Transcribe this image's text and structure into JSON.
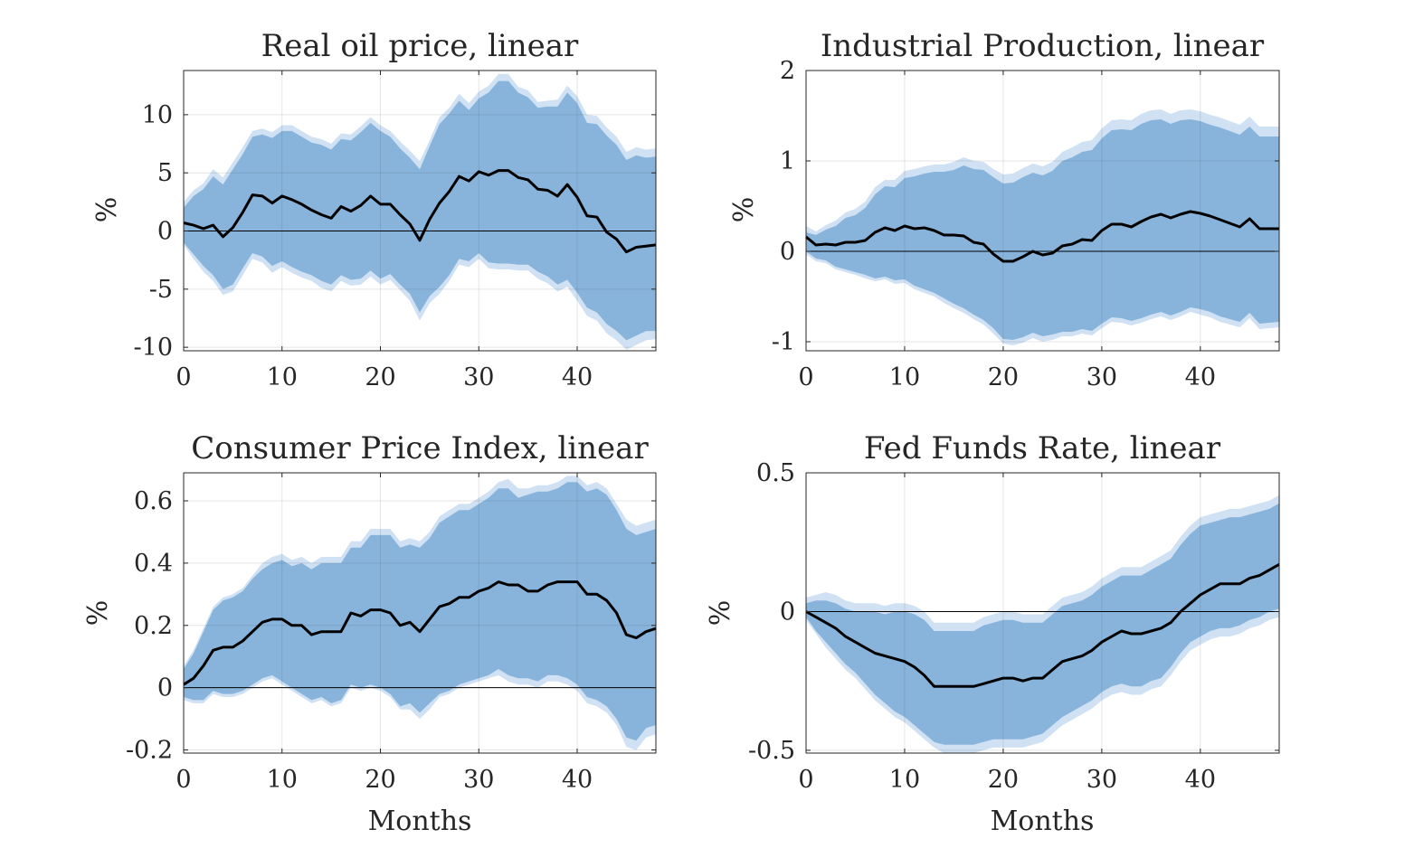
{
  "colors": {
    "outer_band": "#cfe1f3",
    "inner_band": "#88b4dc",
    "line": "#000000",
    "grid": "#dfdfdf",
    "axis": "#262626"
  },
  "chart_data": [
    {
      "type": "area",
      "title": "Real oil price, linear",
      "xlabel": "",
      "ylabel": "%",
      "xlim": [
        0,
        48
      ],
      "ylim": [
        -10.3,
        13.8
      ],
      "xticks": [
        0,
        10,
        20,
        30,
        40
      ],
      "yticks": [
        -10,
        -5,
        0,
        5,
        10
      ],
      "ytick_labels": [
        "-10",
        "-5",
        "0",
        "5",
        "10"
      ],
      "grid": true,
      "zero_line": true,
      "x": [
        0,
        1,
        2,
        3,
        4,
        5,
        6,
        7,
        8,
        9,
        10,
        11,
        12,
        13,
        14,
        15,
        16,
        17,
        18,
        19,
        20,
        21,
        22,
        23,
        24,
        25,
        26,
        27,
        28,
        29,
        30,
        31,
        32,
        33,
        34,
        35,
        36,
        37,
        38,
        39,
        40,
        41,
        42,
        43,
        44,
        45,
        46,
        47,
        48
      ],
      "median": [
        0.7,
        0.5,
        0.2,
        0.5,
        -0.5,
        0.3,
        1.6,
        3.1,
        3.0,
        2.4,
        3.0,
        2.7,
        2.3,
        1.8,
        1.4,
        1.1,
        2.1,
        1.7,
        2.2,
        3.0,
        2.3,
        2.3,
        1.4,
        0.6,
        -0.8,
        1.0,
        2.4,
        3.4,
        4.7,
        4.3,
        5.1,
        4.8,
        5.2,
        5.2,
        4.6,
        4.4,
        3.6,
        3.5,
        3.0,
        4.0,
        2.9,
        1.3,
        1.2,
        -0.1,
        -0.7,
        -1.8,
        -1.4,
        -1.3,
        -1.2
      ],
      "inner_lower": [
        -1.0,
        -2.0,
        -3.0,
        -3.8,
        -5.0,
        -4.6,
        -3.2,
        -1.9,
        -2.2,
        -3.0,
        -2.6,
        -3.1,
        -3.5,
        -3.8,
        -4.3,
        -4.6,
        -3.8,
        -4.2,
        -4.1,
        -3.4,
        -4.1,
        -3.7,
        -4.6,
        -5.4,
        -7.0,
        -5.6,
        -4.8,
        -3.8,
        -2.4,
        -2.6,
        -1.9,
        -2.7,
        -2.8,
        -2.8,
        -2.9,
        -2.9,
        -3.5,
        -3.9,
        -4.6,
        -4.2,
        -5.3,
        -6.6,
        -7.0,
        -8.0,
        -8.6,
        -9.4,
        -9.0,
        -8.6,
        -8.6
      ],
      "inner_upper": [
        2.0,
        3.0,
        3.6,
        4.7,
        4.0,
        5.3,
        6.6,
        8.1,
        8.3,
        8.0,
        8.6,
        8.6,
        8.1,
        7.6,
        7.4,
        7.0,
        7.9,
        7.8,
        8.5,
        9.3,
        8.6,
        8.1,
        7.1,
        6.3,
        5.3,
        7.3,
        9.2,
        10.1,
        11.2,
        10.4,
        11.4,
        11.9,
        12.9,
        12.9,
        11.9,
        11.5,
        10.6,
        10.7,
        10.7,
        11.9,
        11.0,
        9.3,
        9.2,
        8.2,
        7.4,
        6.1,
        6.5,
        6.3,
        6.4
      ],
      "outer_lower": [
        -1.2,
        -2.4,
        -3.5,
        -4.3,
        -5.5,
        -5.2,
        -3.8,
        -2.4,
        -2.7,
        -3.6,
        -3.1,
        -3.6,
        -4.0,
        -4.3,
        -4.9,
        -5.2,
        -4.3,
        -4.7,
        -4.6,
        -3.9,
        -4.6,
        -4.2,
        -5.1,
        -6.0,
        -7.7,
        -6.2,
        -5.4,
        -4.3,
        -2.9,
        -3.1,
        -2.4,
        -3.2,
        -3.3,
        -3.3,
        -3.4,
        -3.4,
        -4.1,
        -4.5,
        -5.2,
        -4.8,
        -6.0,
        -7.3,
        -7.7,
        -8.8,
        -9.4,
        -10.2,
        -9.8,
        -9.4,
        -9.3
      ],
      "outer_upper": [
        2.5,
        3.5,
        4.1,
        5.3,
        4.6,
        5.9,
        7.2,
        8.6,
        8.8,
        8.5,
        9.1,
        9.1,
        8.6,
        8.1,
        7.9,
        7.5,
        8.4,
        8.3,
        9.0,
        9.8,
        9.1,
        8.6,
        7.7,
        6.9,
        6.0,
        7.8,
        9.8,
        10.6,
        11.8,
        11.0,
        12.0,
        12.5,
        13.5,
        13.5,
        12.4,
        12.1,
        11.1,
        11.2,
        11.3,
        12.5,
        11.6,
        10.0,
        9.9,
        8.9,
        8.1,
        6.8,
        7.2,
        7.0,
        7.1
      ]
    },
    {
      "type": "area",
      "title": "Industrial Production, linear",
      "xlabel": "",
      "ylabel": "%",
      "xlim": [
        0,
        48
      ],
      "ylim": [
        -1.1,
        2.0
      ],
      "xticks": [
        0,
        10,
        20,
        30,
        40
      ],
      "yticks": [
        -1,
        0,
        1,
        2
      ],
      "ytick_labels": [
        "-1",
        "0",
        "1",
        "2"
      ],
      "grid": true,
      "zero_line": true,
      "x": [
        0,
        1,
        2,
        3,
        4,
        5,
        6,
        7,
        8,
        9,
        10,
        11,
        12,
        13,
        14,
        15,
        16,
        17,
        18,
        19,
        20,
        21,
        22,
        23,
        24,
        25,
        26,
        27,
        28,
        29,
        30,
        31,
        32,
        33,
        34,
        35,
        36,
        37,
        38,
        39,
        40,
        41,
        42,
        43,
        44,
        45,
        46,
        47,
        48
      ],
      "median": [
        0.16,
        0.07,
        0.08,
        0.07,
        0.1,
        0.1,
        0.12,
        0.21,
        0.26,
        0.23,
        0.28,
        0.25,
        0.26,
        0.23,
        0.18,
        0.18,
        0.17,
        0.1,
        0.08,
        -0.03,
        -0.11,
        -0.11,
        -0.06,
        0.0,
        -0.04,
        -0.02,
        0.06,
        0.08,
        0.13,
        0.12,
        0.23,
        0.3,
        0.3,
        0.27,
        0.33,
        0.38,
        0.41,
        0.37,
        0.41,
        0.44,
        0.42,
        0.39,
        0.35,
        0.31,
        0.27,
        0.36,
        0.25,
        0.25,
        0.25
      ],
      "inner_lower": [
        0.0,
        -0.08,
        -0.1,
        -0.17,
        -0.2,
        -0.23,
        -0.26,
        -0.3,
        -0.28,
        -0.32,
        -0.31,
        -0.38,
        -0.42,
        -0.46,
        -0.52,
        -0.58,
        -0.63,
        -0.7,
        -0.76,
        -0.85,
        -0.97,
        -0.98,
        -0.95,
        -0.9,
        -0.94,
        -0.92,
        -0.89,
        -0.89,
        -0.86,
        -0.88,
        -0.8,
        -0.73,
        -0.74,
        -0.77,
        -0.74,
        -0.7,
        -0.67,
        -0.71,
        -0.67,
        -0.62,
        -0.64,
        -0.67,
        -0.72,
        -0.75,
        -0.78,
        -0.68,
        -0.8,
        -0.79,
        -0.78
      ],
      "inner_upper": [
        0.21,
        0.18,
        0.24,
        0.28,
        0.37,
        0.4,
        0.48,
        0.63,
        0.72,
        0.71,
        0.81,
        0.83,
        0.86,
        0.88,
        0.88,
        0.9,
        0.95,
        0.91,
        0.9,
        0.82,
        0.75,
        0.76,
        0.82,
        0.87,
        0.84,
        0.89,
        1.0,
        1.04,
        1.1,
        1.12,
        1.25,
        1.34,
        1.35,
        1.34,
        1.41,
        1.45,
        1.46,
        1.41,
        1.45,
        1.46,
        1.44,
        1.4,
        1.37,
        1.33,
        1.29,
        1.38,
        1.27,
        1.27,
        1.27
      ],
      "outer_lower": [
        -0.03,
        -0.11,
        -0.13,
        -0.2,
        -0.23,
        -0.26,
        -0.3,
        -0.33,
        -0.31,
        -0.36,
        -0.35,
        -0.42,
        -0.46,
        -0.5,
        -0.57,
        -0.63,
        -0.68,
        -0.75,
        -0.81,
        -0.91,
        -1.02,
        -1.04,
        -1.01,
        -0.96,
        -1.0,
        -0.98,
        -0.94,
        -0.94,
        -0.91,
        -0.93,
        -0.85,
        -0.78,
        -0.79,
        -0.82,
        -0.79,
        -0.75,
        -0.72,
        -0.76,
        -0.72,
        -0.67,
        -0.7,
        -0.73,
        -0.78,
        -0.81,
        -0.84,
        -0.74,
        -0.86,
        -0.85,
        -0.84
      ],
      "outer_upper": [
        0.28,
        0.22,
        0.29,
        0.34,
        0.43,
        0.47,
        0.55,
        0.71,
        0.79,
        0.79,
        0.89,
        0.91,
        0.94,
        0.96,
        0.96,
        0.99,
        1.04,
        1.0,
        0.99,
        0.91,
        0.85,
        0.86,
        0.92,
        0.97,
        0.94,
        0.99,
        1.1,
        1.15,
        1.21,
        1.23,
        1.36,
        1.45,
        1.46,
        1.45,
        1.52,
        1.56,
        1.57,
        1.52,
        1.56,
        1.57,
        1.55,
        1.51,
        1.48,
        1.44,
        1.4,
        1.49,
        1.38,
        1.38,
        1.38
      ]
    },
    {
      "type": "area",
      "title": "Consumer Price Index, linear",
      "xlabel": "Months",
      "ylabel": "%",
      "xlim": [
        0,
        48
      ],
      "ylim": [
        -0.21,
        0.69
      ],
      "xticks": [
        0,
        10,
        20,
        30,
        40
      ],
      "yticks": [
        -0.2,
        0,
        0.2,
        0.4,
        0.6
      ],
      "ytick_labels": [
        "-0.2",
        "0",
        "0.2",
        "0.4",
        "0.6"
      ],
      "grid": true,
      "zero_line": true,
      "x": [
        0,
        1,
        2,
        3,
        4,
        5,
        6,
        7,
        8,
        9,
        10,
        11,
        12,
        13,
        14,
        15,
        16,
        17,
        18,
        19,
        20,
        21,
        22,
        23,
        24,
        25,
        26,
        27,
        28,
        29,
        30,
        31,
        32,
        33,
        34,
        35,
        36,
        37,
        38,
        39,
        40,
        41,
        42,
        43,
        44,
        45,
        46,
        47,
        48
      ],
      "median": [
        0.01,
        0.03,
        0.07,
        0.12,
        0.13,
        0.13,
        0.15,
        0.18,
        0.21,
        0.22,
        0.22,
        0.2,
        0.2,
        0.17,
        0.18,
        0.18,
        0.18,
        0.24,
        0.23,
        0.25,
        0.25,
        0.24,
        0.2,
        0.21,
        0.18,
        0.22,
        0.26,
        0.27,
        0.29,
        0.29,
        0.31,
        0.32,
        0.34,
        0.33,
        0.33,
        0.31,
        0.31,
        0.33,
        0.34,
        0.34,
        0.34,
        0.3,
        0.3,
        0.28,
        0.24,
        0.17,
        0.16,
        0.18,
        0.19
      ],
      "inner_lower": [
        -0.03,
        -0.04,
        -0.04,
        -0.01,
        -0.02,
        -0.02,
        -0.01,
        0.01,
        0.03,
        0.04,
        0.02,
        0.0,
        -0.02,
        -0.04,
        -0.03,
        -0.05,
        -0.04,
        0.01,
        0.0,
        0.01,
        0.0,
        -0.02,
        -0.06,
        -0.05,
        -0.08,
        -0.05,
        -0.02,
        -0.01,
        0.01,
        0.02,
        0.03,
        0.04,
        0.06,
        0.04,
        0.03,
        0.03,
        0.02,
        0.04,
        0.04,
        0.03,
        0.01,
        -0.03,
        -0.04,
        -0.06,
        -0.1,
        -0.16,
        -0.17,
        -0.13,
        -0.12
      ],
      "inner_upper": [
        0.06,
        0.11,
        0.18,
        0.25,
        0.28,
        0.29,
        0.31,
        0.35,
        0.38,
        0.4,
        0.41,
        0.39,
        0.4,
        0.38,
        0.4,
        0.4,
        0.4,
        0.45,
        0.45,
        0.49,
        0.49,
        0.49,
        0.45,
        0.46,
        0.45,
        0.48,
        0.53,
        0.55,
        0.57,
        0.57,
        0.59,
        0.61,
        0.64,
        0.64,
        0.61,
        0.62,
        0.63,
        0.63,
        0.64,
        0.66,
        0.66,
        0.63,
        0.64,
        0.62,
        0.57,
        0.51,
        0.49,
        0.5,
        0.51
      ],
      "outer_lower": [
        -0.04,
        -0.05,
        -0.05,
        -0.02,
        -0.03,
        -0.03,
        -0.02,
        0.0,
        0.02,
        0.03,
        0.01,
        -0.01,
        -0.03,
        -0.05,
        -0.04,
        -0.06,
        -0.05,
        0.0,
        -0.01,
        0.0,
        -0.01,
        -0.03,
        -0.07,
        -0.07,
        -0.1,
        -0.07,
        -0.03,
        -0.02,
        0.0,
        0.01,
        0.02,
        0.03,
        0.04,
        0.02,
        0.01,
        0.01,
        0.0,
        0.02,
        0.02,
        0.01,
        -0.01,
        -0.05,
        -0.06,
        -0.08,
        -0.12,
        -0.19,
        -0.2,
        -0.16,
        -0.15
      ],
      "outer_upper": [
        0.07,
        0.12,
        0.19,
        0.26,
        0.29,
        0.3,
        0.32,
        0.36,
        0.4,
        0.42,
        0.43,
        0.41,
        0.42,
        0.4,
        0.42,
        0.42,
        0.42,
        0.47,
        0.47,
        0.51,
        0.51,
        0.51,
        0.47,
        0.48,
        0.47,
        0.5,
        0.55,
        0.57,
        0.59,
        0.59,
        0.61,
        0.63,
        0.66,
        0.67,
        0.64,
        0.64,
        0.65,
        0.65,
        0.66,
        0.68,
        0.68,
        0.65,
        0.66,
        0.64,
        0.59,
        0.54,
        0.52,
        0.53,
        0.54
      ]
    },
    {
      "type": "area",
      "title": "Fed Funds Rate, linear",
      "xlabel": "Months",
      "ylabel": "%",
      "xlim": [
        0,
        48
      ],
      "ylim": [
        -0.51,
        0.5
      ],
      "xticks": [
        0,
        10,
        20,
        30,
        40
      ],
      "yticks": [
        -0.5,
        0,
        0.5
      ],
      "ytick_labels": [
        "-0.5",
        "0",
        "0.5"
      ],
      "grid": true,
      "zero_line": true,
      "x": [
        0,
        1,
        2,
        3,
        4,
        5,
        6,
        7,
        8,
        9,
        10,
        11,
        12,
        13,
        14,
        15,
        16,
        17,
        18,
        19,
        20,
        21,
        22,
        23,
        24,
        25,
        26,
        27,
        28,
        29,
        30,
        31,
        32,
        33,
        34,
        35,
        36,
        37,
        38,
        39,
        40,
        41,
        42,
        43,
        44,
        45,
        46,
        47,
        48
      ],
      "median": [
        0.0,
        -0.02,
        -0.04,
        -0.06,
        -0.09,
        -0.11,
        -0.13,
        -0.15,
        -0.16,
        -0.17,
        -0.18,
        -0.2,
        -0.23,
        -0.27,
        -0.27,
        -0.27,
        -0.27,
        -0.27,
        -0.26,
        -0.25,
        -0.24,
        -0.24,
        -0.25,
        -0.24,
        -0.24,
        -0.21,
        -0.18,
        -0.17,
        -0.16,
        -0.14,
        -0.11,
        -0.09,
        -0.07,
        -0.08,
        -0.08,
        -0.07,
        -0.06,
        -0.04,
        0.0,
        0.03,
        0.06,
        0.08,
        0.1,
        0.1,
        0.1,
        0.12,
        0.13,
        0.15,
        0.17
      ],
      "inner_lower": [
        -0.02,
        -0.07,
        -0.11,
        -0.15,
        -0.19,
        -0.22,
        -0.26,
        -0.3,
        -0.33,
        -0.36,
        -0.38,
        -0.41,
        -0.44,
        -0.47,
        -0.48,
        -0.48,
        -0.48,
        -0.48,
        -0.47,
        -0.46,
        -0.46,
        -0.46,
        -0.46,
        -0.45,
        -0.44,
        -0.41,
        -0.38,
        -0.36,
        -0.34,
        -0.32,
        -0.29,
        -0.27,
        -0.26,
        -0.27,
        -0.27,
        -0.25,
        -0.24,
        -0.2,
        -0.15,
        -0.11,
        -0.09,
        -0.07,
        -0.06,
        -0.06,
        -0.05,
        -0.03,
        -0.02,
        0.0,
        0.01
      ],
      "inner_upper": [
        0.03,
        0.04,
        0.04,
        0.03,
        0.01,
        0.0,
        0.0,
        0.0,
        -0.01,
        0.0,
        0.0,
        -0.01,
        -0.03,
        -0.07,
        -0.07,
        -0.07,
        -0.07,
        -0.07,
        -0.05,
        -0.04,
        -0.03,
        -0.03,
        -0.04,
        -0.04,
        -0.04,
        -0.01,
        0.02,
        0.03,
        0.04,
        0.06,
        0.09,
        0.11,
        0.13,
        0.13,
        0.13,
        0.15,
        0.17,
        0.19,
        0.24,
        0.28,
        0.31,
        0.32,
        0.33,
        0.34,
        0.34,
        0.35,
        0.36,
        0.37,
        0.39
      ],
      "outer_lower": [
        -0.03,
        -0.08,
        -0.13,
        -0.17,
        -0.21,
        -0.24,
        -0.28,
        -0.32,
        -0.35,
        -0.38,
        -0.4,
        -0.43,
        -0.46,
        -0.49,
        -0.51,
        -0.51,
        -0.51,
        -0.51,
        -0.5,
        -0.49,
        -0.49,
        -0.49,
        -0.49,
        -0.48,
        -0.47,
        -0.44,
        -0.41,
        -0.39,
        -0.37,
        -0.35,
        -0.32,
        -0.3,
        -0.29,
        -0.3,
        -0.3,
        -0.28,
        -0.27,
        -0.23,
        -0.18,
        -0.14,
        -0.12,
        -0.1,
        -0.09,
        -0.09,
        -0.08,
        -0.06,
        -0.05,
        -0.03,
        -0.02
      ],
      "outer_upper": [
        0.05,
        0.06,
        0.07,
        0.06,
        0.04,
        0.03,
        0.03,
        0.03,
        0.02,
        0.03,
        0.03,
        0.02,
        0.0,
        -0.04,
        -0.04,
        -0.04,
        -0.04,
        -0.04,
        -0.02,
        -0.01,
        0.0,
        0.0,
        -0.01,
        -0.01,
        -0.01,
        0.02,
        0.05,
        0.06,
        0.07,
        0.09,
        0.12,
        0.14,
        0.16,
        0.16,
        0.16,
        0.18,
        0.2,
        0.22,
        0.27,
        0.31,
        0.34,
        0.35,
        0.36,
        0.37,
        0.37,
        0.38,
        0.39,
        0.4,
        0.42
      ]
    }
  ]
}
